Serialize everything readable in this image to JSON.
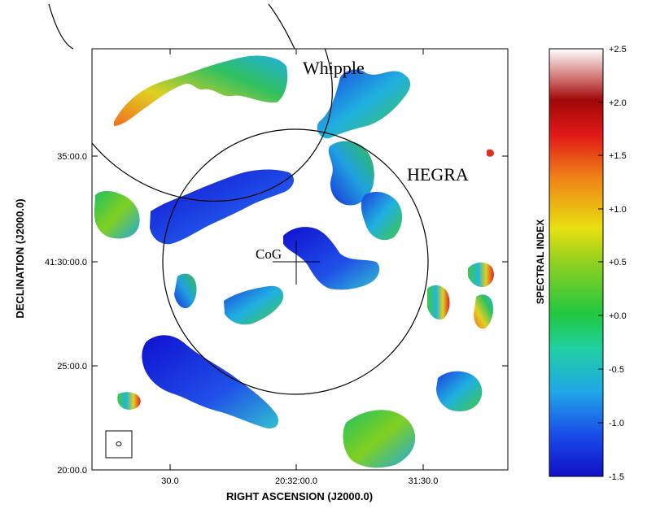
{
  "chart_data": {
    "type": "heatmap",
    "title": "",
    "xlabel": "RIGHT ASCENSION (J2000.0)",
    "ylabel": "DECLINATION (J2000.0)",
    "x_ticks": [
      "30.0",
      "20:32:00.0",
      "31:30.0"
    ],
    "y_ticks": [
      "20:00.0",
      "25:00.0",
      "41:30:00.0",
      "35:00.0"
    ],
    "colorbar": {
      "label": "SPECTRAL INDEX",
      "ticks": [
        "+2.5",
        "+2.0",
        "+1.5",
        "+1.0",
        "+0.5",
        "+0.0",
        "-0.5",
        "-1.0",
        "-1.5"
      ],
      "range": [
        -1.5,
        2.5
      ],
      "colors": [
        "#1818d8",
        "#1e6cf0",
        "#20c0e0",
        "#20c860",
        "#80d020",
        "#e8e010",
        "#f08018",
        "#e01818",
        "#a00808",
        "#f0f0f0",
        "#ffffff"
      ]
    },
    "annotations": [
      "Whipple",
      "HEGRA",
      "CoG"
    ],
    "grid": false
  }
}
